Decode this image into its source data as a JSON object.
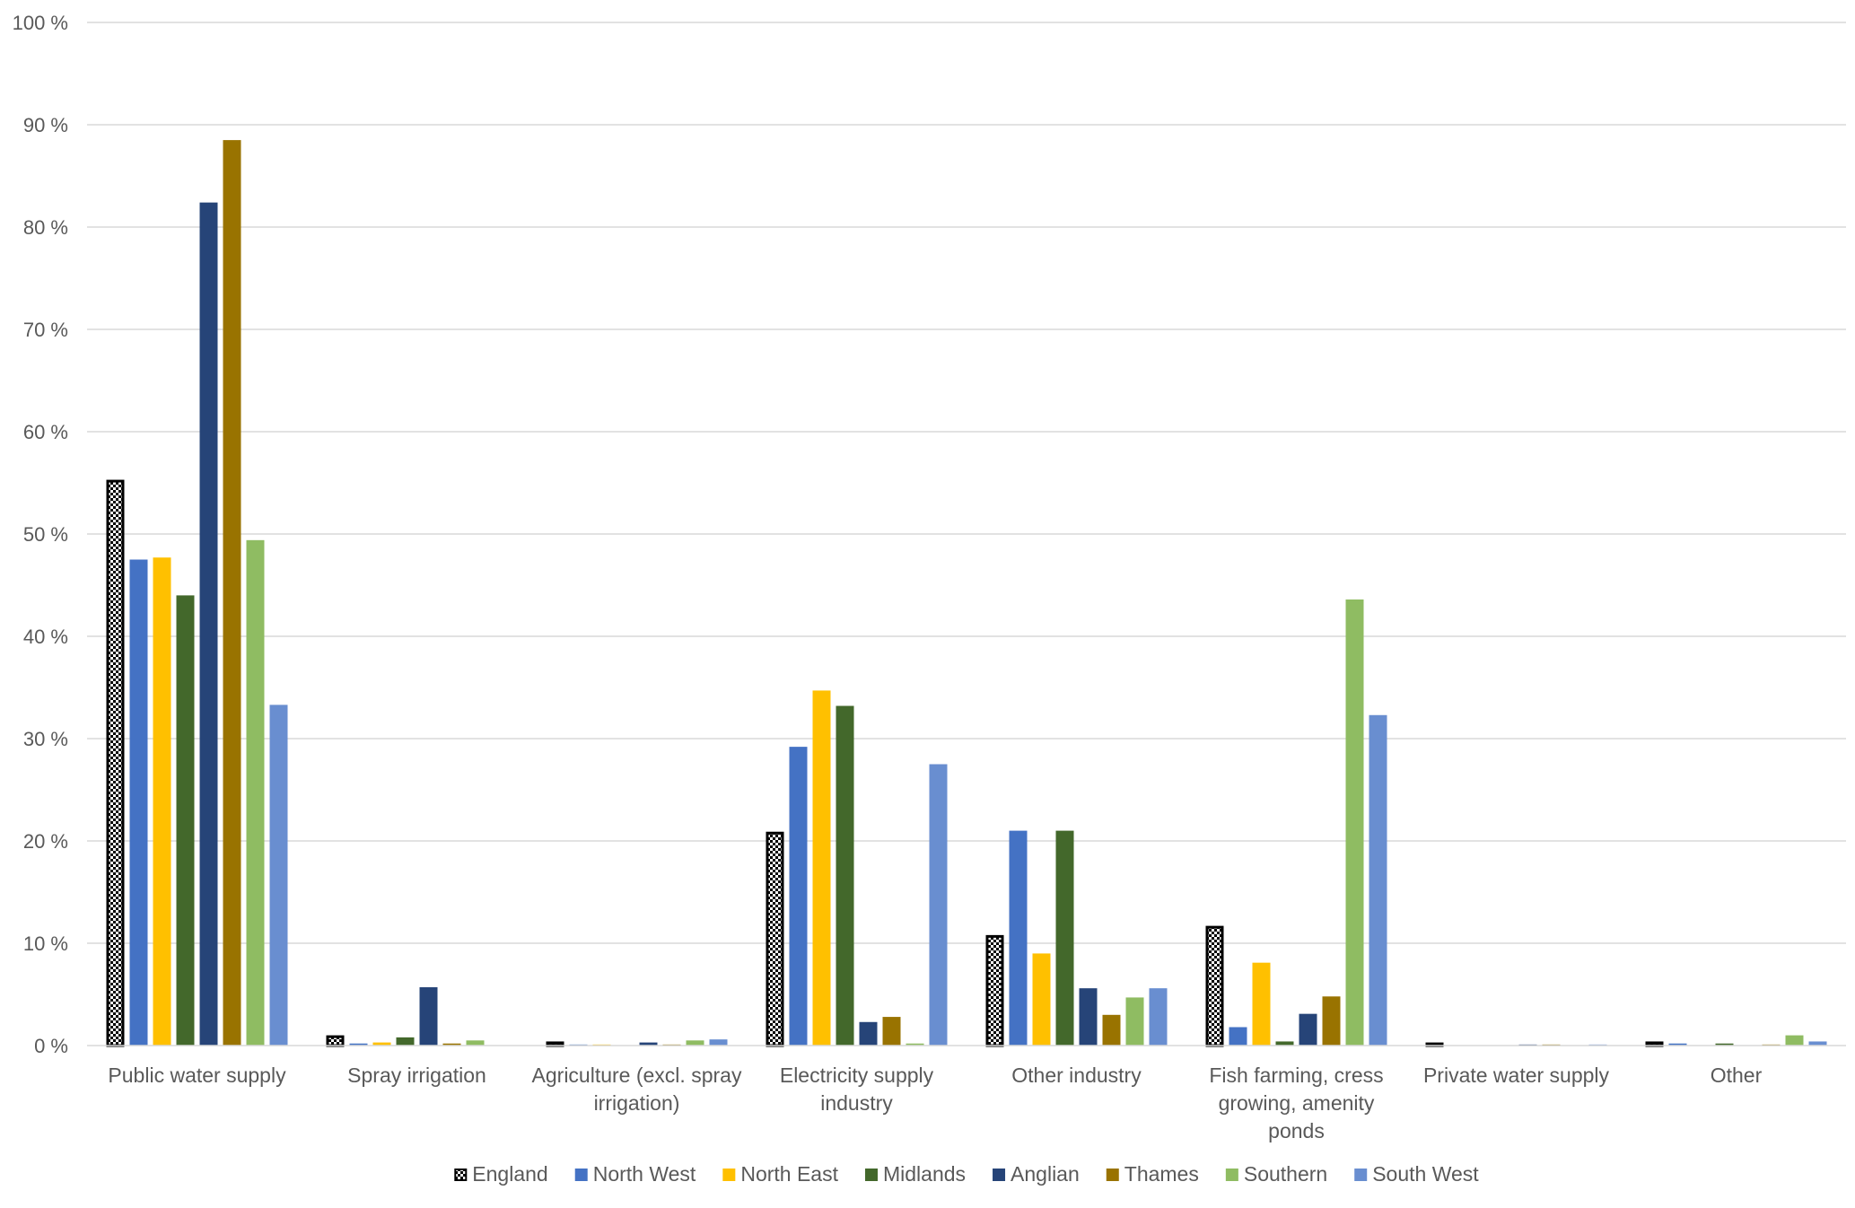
{
  "chart_data": {
    "type": "bar",
    "title": "",
    "xlabel": "",
    "ylabel": "",
    "ylim": [
      0,
      100
    ],
    "yticks": [
      "0 %",
      "10 %",
      "20 %",
      "30 %",
      "40 %",
      "50 %",
      "60 %",
      "70 %",
      "80 %",
      "90 %",
      "100 %"
    ],
    "grid": true,
    "legend_position": "bottom",
    "categories": [
      [
        "Public water supply"
      ],
      [
        "Spray irrigation"
      ],
      [
        "Agriculture (excl. spray",
        "irrigation)"
      ],
      [
        "Electricity supply",
        "industry"
      ],
      [
        "Other industry"
      ],
      [
        "Fish farming, cress",
        "growing, amenity",
        "ponds"
      ],
      [
        "Private water supply"
      ],
      [
        "Other"
      ]
    ],
    "series": [
      {
        "name": "England",
        "color": "#000000",
        "pattern": "checker",
        "values": [
          55.3,
          1.0,
          0.4,
          20.9,
          10.8,
          11.7,
          0.3,
          0.4
        ]
      },
      {
        "name": "North West",
        "color": "#4472c4",
        "values": [
          47.5,
          0.2,
          0.1,
          29.2,
          21.0,
          1.8,
          0.0,
          0.2
        ]
      },
      {
        "name": "North East",
        "color": "#ffc000",
        "values": [
          47.7,
          0.3,
          0.1,
          34.7,
          9.0,
          8.1,
          0.0,
          0.0
        ]
      },
      {
        "name": "Midlands",
        "color": "#43682b",
        "values": [
          44.0,
          0.8,
          0.0,
          33.2,
          21.0,
          0.4,
          0.0,
          0.2
        ]
      },
      {
        "name": "Anglian",
        "color": "#264478",
        "values": [
          82.4,
          5.7,
          0.3,
          2.3,
          5.6,
          3.1,
          0.1,
          0.0
        ]
      },
      {
        "name": "Thames",
        "color": "#997300",
        "values": [
          88.5,
          0.2,
          0.1,
          2.8,
          3.0,
          4.8,
          0.1,
          0.1
        ]
      },
      {
        "name": "Southern",
        "color": "#8fbc62",
        "values": [
          49.4,
          0.5,
          0.5,
          0.2,
          4.7,
          43.6,
          0.0,
          1.0
        ]
      },
      {
        "name": "South West",
        "color": "#698ed0",
        "values": [
          33.3,
          0.0,
          0.6,
          27.5,
          5.6,
          32.3,
          0.1,
          0.4
        ]
      }
    ]
  }
}
